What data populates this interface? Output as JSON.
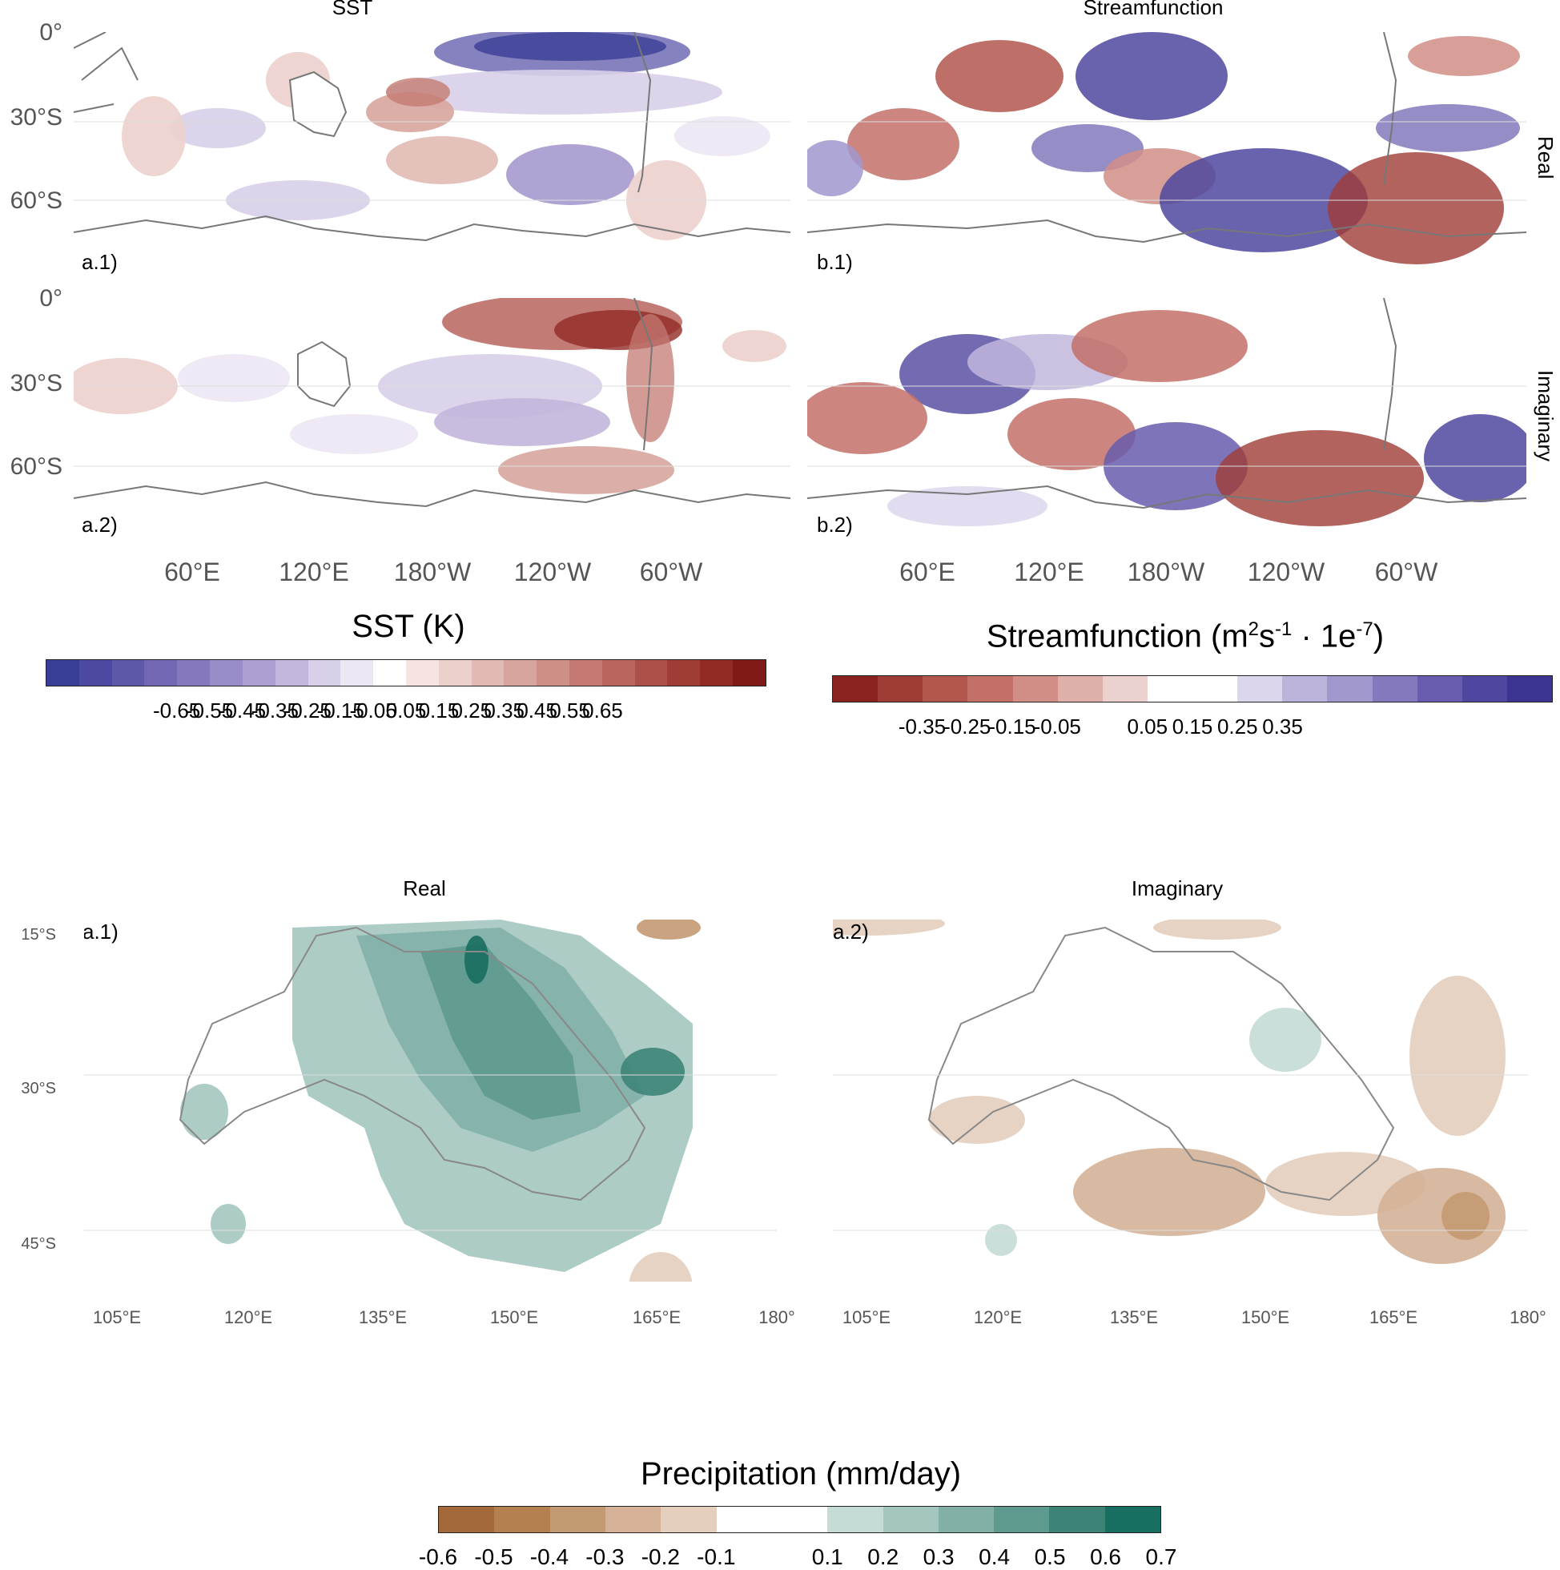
{
  "top": {
    "col_titles": [
      "SST",
      "Streamfunction"
    ],
    "row_titles": [
      "Real",
      "Imaginary"
    ],
    "panel_labels": [
      "a.1)",
      "b.1)",
      "a.2)",
      "b.2)"
    ],
    "lat_labels": [
      "0°",
      "30°S",
      "60°S"
    ],
    "lon_labels": [
      "60°E",
      "120°E",
      "180°W",
      "120°W",
      "60°W"
    ]
  },
  "sst_colorbar": {
    "title": "SST (K)",
    "unit": "K",
    "colors": [
      "#3a3d96",
      "#4c4aa0",
      "#5e58a9",
      "#7267b3",
      "#8578bd",
      "#9a8cc7",
      "#ad9fd1",
      "#c2b6dc",
      "#d8cfe8",
      "#ece7f3",
      "#ffffff",
      "#f5e4e2",
      "#ecd0cc",
      "#e2bab4",
      "#d8a59e",
      "#ce8f87",
      "#c47a72",
      "#b9655d",
      "#ad5049",
      "#a03c36",
      "#922a26",
      "#7f1a17"
    ],
    "ticks": [
      "-0.65",
      "-0.55",
      "-0.45",
      "-0.35",
      "-0.25",
      "-0.15",
      "-0.05",
      "0.05",
      "0.15",
      "0.25",
      "0.35",
      "0.45",
      "0.55",
      "0.65"
    ]
  },
  "stream_colorbar": {
    "title_main": "Streamfunction (m",
    "title_sup1": "2",
    "title_mid": "s",
    "title_sup2": "-1",
    "title_mid2": " · 1e",
    "title_sup3": "-7",
    "title_end": ")",
    "colors": [
      "#8a2220",
      "#a03c36",
      "#b3564e",
      "#c37068",
      "#d18e87",
      "#dfb0aa",
      "#ecd2ce",
      "#ffffff",
      "#ffffff",
      "#dcd6ec",
      "#bdb4dc",
      "#a097cc",
      "#8379bc",
      "#675cad",
      "#4f469f",
      "#3b3591"
    ],
    "ticks": [
      "-0.35",
      "-0.25",
      "-0.15",
      "-0.05",
      "0.05",
      "0.15",
      "0.25",
      "0.35"
    ]
  },
  "bottom": {
    "col_titles": [
      "Real",
      "Imaginary"
    ],
    "panel_labels": [
      "a.1)",
      "a.2)"
    ],
    "lat_labels": [
      "15°S",
      "30°S",
      "45°S"
    ],
    "lon_labels": [
      "105°E",
      "120°E",
      "135°E",
      "150°E",
      "165°E",
      "180°"
    ]
  },
  "precip_colorbar": {
    "title": "Precipitation (mm/day)",
    "unit": "mm/day",
    "colors": [
      "#a4693a",
      "#b4804f",
      "#c49a72",
      "#d4b197",
      "#e4cebc",
      "#ffffff",
      "#ffffff",
      "#c5dbd6",
      "#a3c6bf",
      "#82b0a7",
      "#5f9a8f",
      "#3d8477",
      "#186e60"
    ],
    "ticks": [
      "-0.6",
      "-0.5",
      "-0.4",
      "-0.3",
      "-0.2",
      "-0.1",
      "0.1",
      "0.2",
      "0.3",
      "0.4",
      "0.5",
      "0.6",
      "0.7"
    ]
  }
}
